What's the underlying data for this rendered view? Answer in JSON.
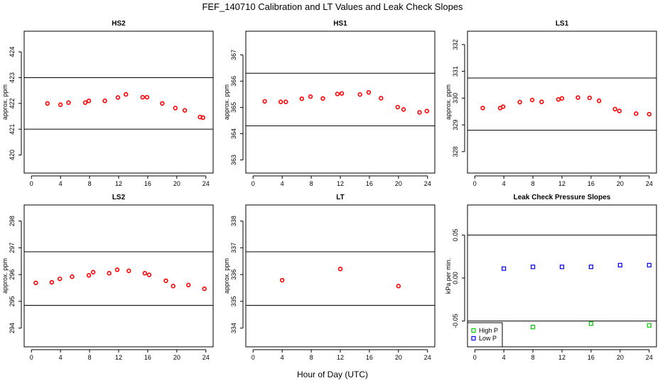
{
  "title": "FEF_140710  Calibration and LT Values and Leak Check Slopes",
  "xlabel": "Hour of Day (UTC)",
  "colors": {
    "red": "#ff0000",
    "blue": "#0000ff",
    "green": "#00cc00",
    "axis": "#000000"
  },
  "chart_data": [
    {
      "id": "hs2",
      "type": "scatter",
      "title": "HS2",
      "ylabel": "approx. ppm",
      "xlim": [
        -1,
        25
      ],
      "xticks": [
        0,
        4,
        8,
        12,
        16,
        20,
        24
      ],
      "ylim": [
        419.3,
        424.8
      ],
      "yticks": [
        420,
        421,
        422,
        423,
        424
      ],
      "hlines": [
        421,
        423
      ],
      "series": [
        {
          "name": "HS2",
          "color": "#ff0000",
          "marker": "circle",
          "x": [
            2.2,
            4.0,
            5.1,
            7.4,
            7.9,
            10.1,
            11.9,
            13.0,
            15.3,
            15.9,
            18.0,
            19.8,
            21.1,
            23.2,
            23.6
          ],
          "y": [
            422.0,
            421.95,
            422.03,
            422.03,
            422.1,
            422.1,
            422.23,
            422.35,
            422.24,
            422.24,
            422.0,
            421.82,
            421.73,
            421.47,
            421.45
          ]
        }
      ]
    },
    {
      "id": "hs1",
      "type": "scatter",
      "title": "HS1",
      "ylabel": "approx. ppm",
      "xlim": [
        -1,
        25
      ],
      "xticks": [
        0,
        4,
        8,
        12,
        16,
        20,
        24
      ],
      "ylim": [
        362.5,
        367.9
      ],
      "yticks": [
        363,
        364,
        365,
        366,
        367
      ],
      "hlines": [
        364.3,
        366.3
      ],
      "series": [
        {
          "name": "HS1",
          "color": "#ff0000",
          "marker": "circle",
          "x": [
            1.6,
            3.8,
            4.5,
            6.7,
            7.9,
            9.6,
            11.6,
            12.2,
            14.7,
            15.9,
            17.6,
            19.9,
            20.7,
            22.9,
            23.9
          ],
          "y": [
            365.23,
            365.21,
            365.21,
            365.33,
            365.41,
            365.34,
            365.51,
            365.53,
            365.49,
            365.57,
            365.35,
            365.01,
            364.92,
            364.81,
            364.86
          ]
        }
      ]
    },
    {
      "id": "ls1",
      "type": "scatter",
      "title": "LS1",
      "ylabel": "approx. ppm",
      "xlim": [
        -1,
        25
      ],
      "xticks": [
        0,
        4,
        8,
        12,
        16,
        20,
        24
      ],
      "ylim": [
        327.2,
        332.5
      ],
      "yticks": [
        328,
        329,
        330,
        331,
        332
      ],
      "hlines": [
        328.8,
        330.75
      ],
      "series": [
        {
          "name": "LS1",
          "color": "#ff0000",
          "marker": "circle",
          "x": [
            1.1,
            3.5,
            3.9,
            6.2,
            7.9,
            9.2,
            11.5,
            12.0,
            14.2,
            15.8,
            17.1,
            19.3,
            19.9,
            22.2,
            24.0
          ],
          "y": [
            329.63,
            329.63,
            329.68,
            329.85,
            329.93,
            329.86,
            329.95,
            329.99,
            330.02,
            330.01,
            329.9,
            329.59,
            329.52,
            329.42,
            329.4
          ]
        }
      ]
    },
    {
      "id": "ls2",
      "type": "scatter",
      "title": "LS2",
      "ylabel": "approx. ppm",
      "xlim": [
        -1,
        25
      ],
      "xticks": [
        0,
        4,
        8,
        12,
        16,
        20,
        24
      ],
      "ylim": [
        293.3,
        298.6
      ],
      "yticks": [
        294,
        295,
        296,
        297,
        298
      ],
      "hlines": [
        294.85,
        296.85
      ],
      "series": [
        {
          "name": "LS2",
          "color": "#ff0000",
          "marker": "circle",
          "x": [
            0.6,
            2.8,
            3.9,
            5.6,
            7.9,
            8.5,
            10.7,
            11.8,
            13.4,
            15.6,
            16.2,
            18.5,
            19.5,
            21.6,
            23.8
          ],
          "y": [
            295.69,
            295.71,
            295.84,
            295.92,
            295.97,
            296.09,
            296.05,
            296.18,
            296.14,
            296.05,
            295.99,
            295.77,
            295.57,
            295.61,
            295.47
          ]
        }
      ]
    },
    {
      "id": "lt",
      "type": "scatter",
      "title": "LT",
      "ylabel": "approx. ppm",
      "xlim": [
        -1,
        25
      ],
      "xticks": [
        0,
        4,
        8,
        12,
        16,
        20,
        24
      ],
      "ylim": [
        333.3,
        338.6
      ],
      "yticks": [
        334,
        335,
        336,
        337,
        338
      ],
      "hlines": [
        334.85,
        336.85
      ],
      "series": [
        {
          "name": "LT",
          "color": "#ff0000",
          "marker": "circle",
          "x": [
            4.0,
            12.0,
            20.0
          ],
          "y": [
            335.79,
            336.21,
            335.57
          ]
        }
      ]
    },
    {
      "id": "leak",
      "type": "scatter",
      "title": "Leak Check Pressure Slopes",
      "ylabel": "kPa per min.",
      "xlim": [
        -1,
        25
      ],
      "xticks": [
        0,
        4,
        8,
        12,
        16,
        20,
        24
      ],
      "ylim": [
        -0.08,
        0.085
      ],
      "yticks": [
        -0.05,
        0.0,
        0.05
      ],
      "yticklabels": [
        "-0.05",
        "0.00",
        "0.05"
      ],
      "hlines": [
        -0.05,
        0.05
      ],
      "legend": {
        "position": "bottom-left",
        "entries": [
          {
            "label": "High P",
            "color": "#00cc00"
          },
          {
            "label": "Low P",
            "color": "#0000ff"
          }
        ]
      },
      "series": [
        {
          "name": "High P",
          "color": "#00cc00",
          "marker": "square",
          "x": [
            8,
            16,
            24
          ],
          "y": [
            -0.057,
            -0.053,
            -0.055
          ]
        },
        {
          "name": "Low P",
          "color": "#0000ff",
          "marker": "square",
          "x": [
            4,
            8,
            12,
            16,
            20,
            24
          ],
          "y": [
            0.011,
            0.013,
            0.013,
            0.013,
            0.015,
            0.015
          ]
        }
      ]
    }
  ]
}
